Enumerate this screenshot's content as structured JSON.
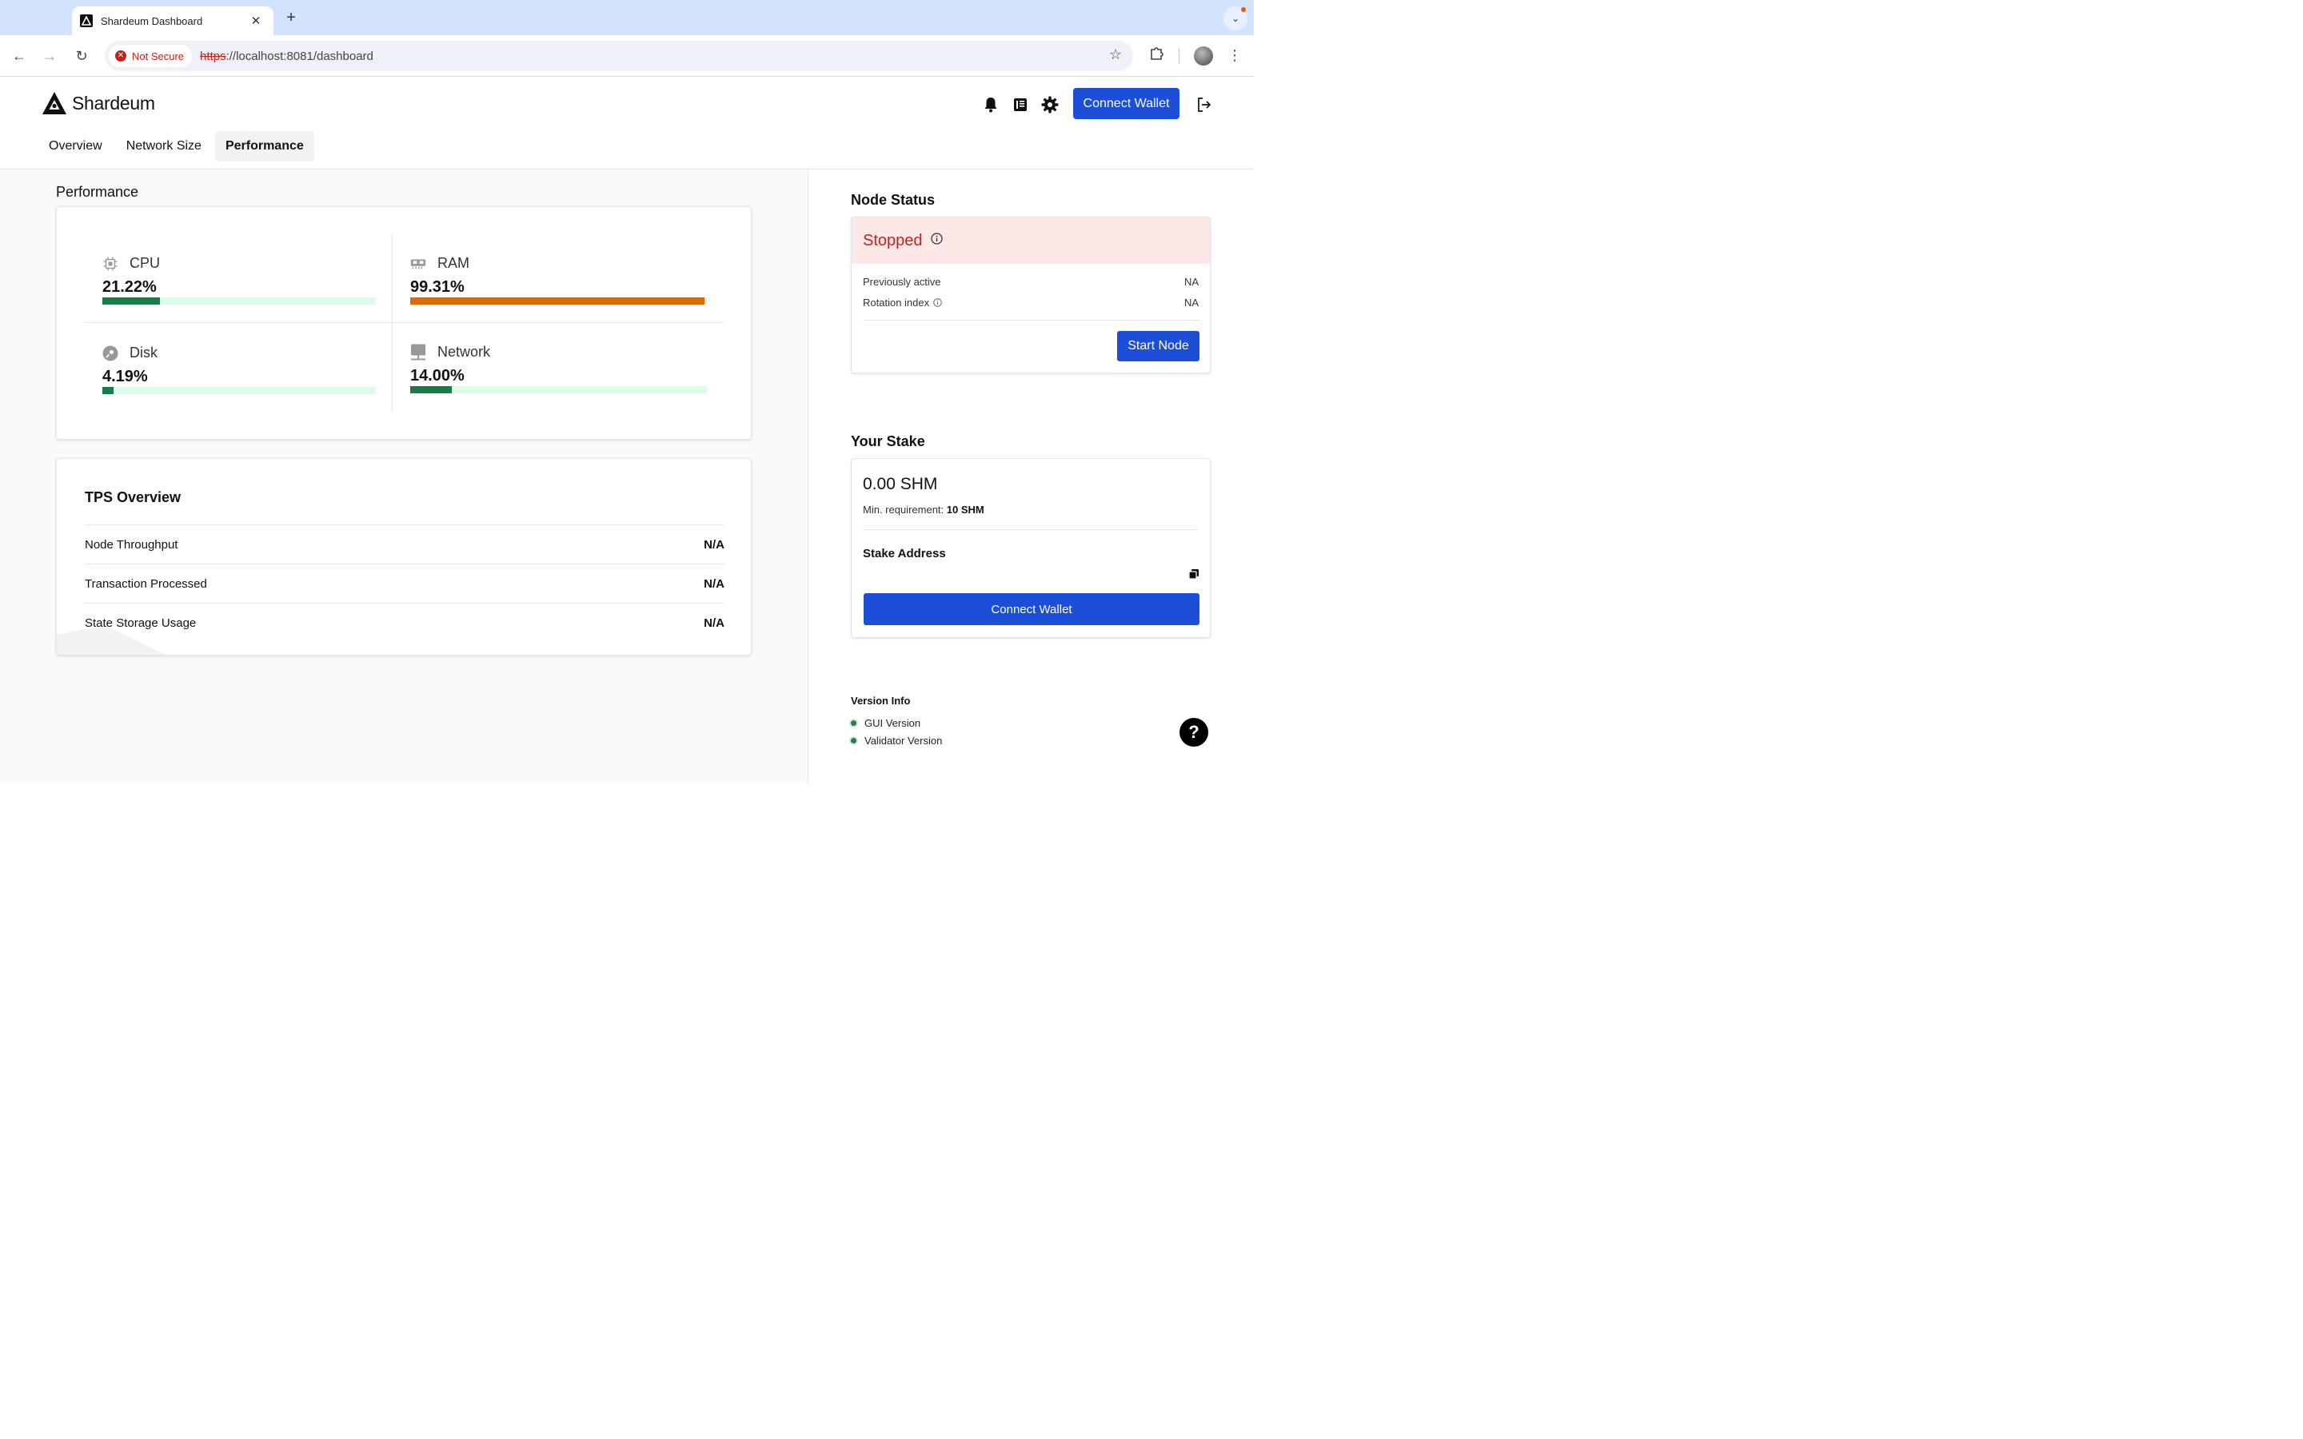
{
  "browser": {
    "tab_title": "Shardeum Dashboard",
    "new_tab_glyph": "+",
    "close_glyph": "✕",
    "security_label": "Not Secure",
    "url_scheme": "https",
    "url_rest": "://localhost:8081/dashboard"
  },
  "header": {
    "brand": "Shardeum",
    "connect_label": "Connect Wallet",
    "tabs": [
      {
        "label": "Overview",
        "active": false
      },
      {
        "label": "Network Size",
        "active": false
      },
      {
        "label": "Performance",
        "active": true
      }
    ]
  },
  "performance": {
    "title": "Performance",
    "metrics": [
      {
        "label": "CPU",
        "value": "21.22%",
        "fill": 0.2122,
        "color": "#1a7a4a",
        "icon": "cpu-icon"
      },
      {
        "label": "RAM",
        "value": "99.31%",
        "fill": 0.9931,
        "color": "#d96c0a",
        "icon": "ram-icon"
      },
      {
        "label": "Disk",
        "value": "4.19%",
        "fill": 0.0419,
        "color": "#1a7a4a",
        "icon": "disk-icon"
      },
      {
        "label": "Network",
        "value": "14.00%",
        "fill": 0.14,
        "color": "#1a7a4a",
        "icon": "network-icon"
      }
    ]
  },
  "tps": {
    "title": "TPS Overview",
    "rows": [
      {
        "label": "Node Throughput",
        "value": "N/A"
      },
      {
        "label": "Transaction Processed",
        "value": "N/A"
      },
      {
        "label": "State Storage Usage",
        "value": "N/A"
      }
    ]
  },
  "node_status": {
    "title": "Node Status",
    "status": "Stopped",
    "previously_active_label": "Previously active",
    "previously_active_value": "NA",
    "rotation_label": "Rotation index",
    "rotation_value": "NA",
    "start_label": "Start Node"
  },
  "stake": {
    "title": "Your Stake",
    "amount": "0.00 SHM",
    "min_label": "Min. requirement:",
    "min_value": "10 SHM",
    "address_label": "Stake Address",
    "connect_label": "Connect Wallet"
  },
  "version": {
    "title": "Version Info",
    "items": [
      "GUI Version",
      "Validator Version"
    ]
  },
  "help_glyph": "?"
}
